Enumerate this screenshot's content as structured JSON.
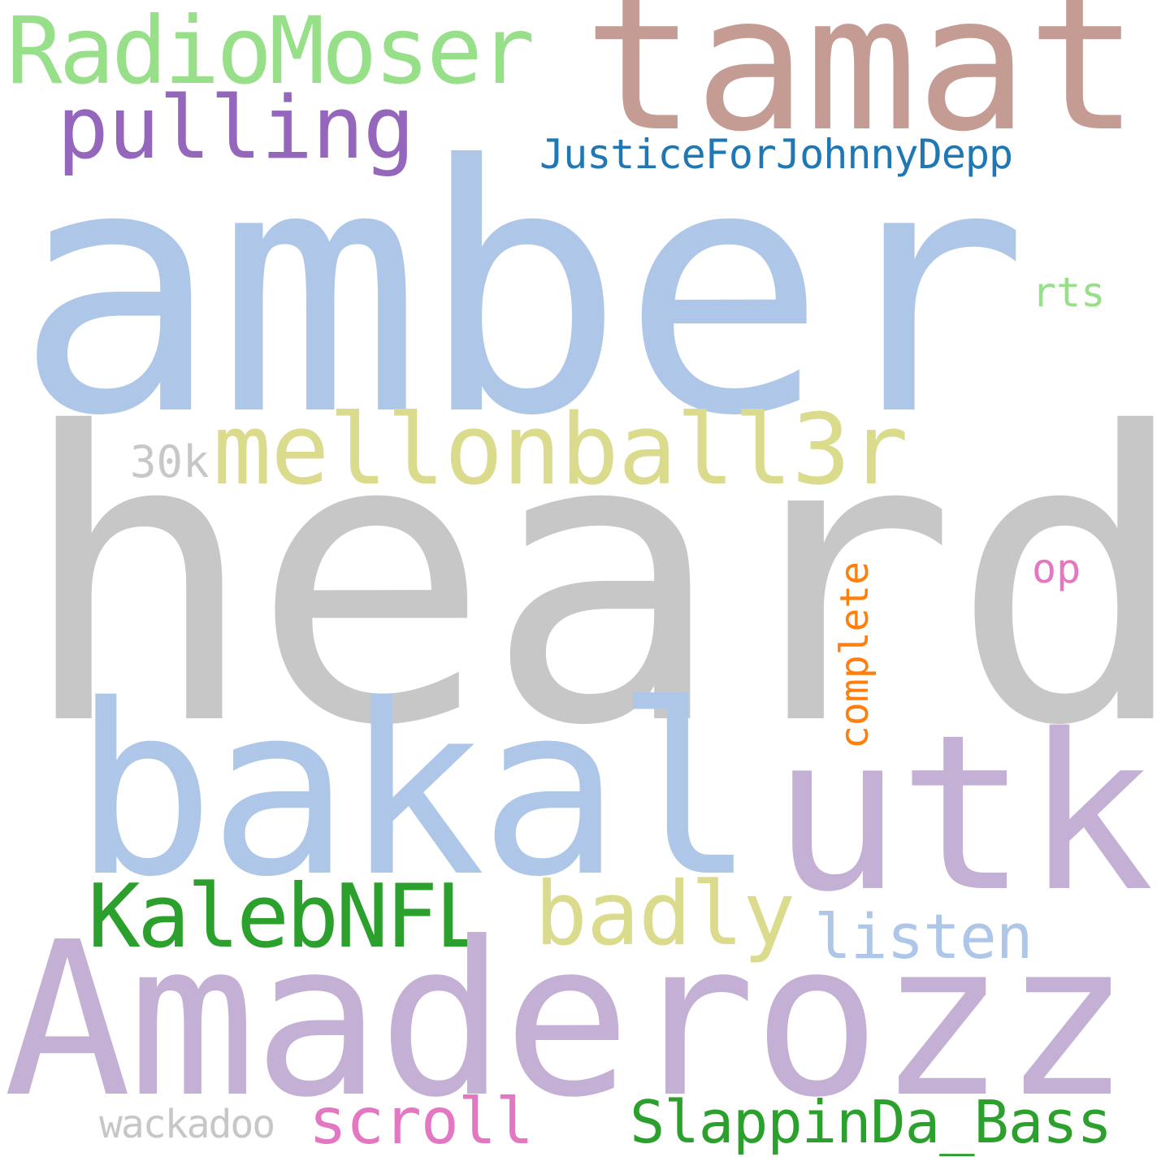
{
  "words": [
    {
      "text": "heard",
      "color": "#c7c7c7"
    },
    {
      "text": "amber",
      "color": "#aec7e8"
    },
    {
      "text": "tamat",
      "color": "#c49c94"
    },
    {
      "text": "RadioMoser",
      "color": "#98df8a"
    },
    {
      "text": "pulling",
      "color": "#9467bd"
    },
    {
      "text": "JusticeForJohnnyDepp",
      "color": "#1f77b4"
    },
    {
      "text": "rts",
      "color": "#98df8a"
    },
    {
      "text": "mellonball3r",
      "color": "#dbdb8d"
    },
    {
      "text": "30k",
      "color": "#c7c7c7"
    },
    {
      "text": "op",
      "color": "#e377c2"
    },
    {
      "text": "complete",
      "color": "#ff7f0e"
    },
    {
      "text": "bakal",
      "color": "#aec7e8"
    },
    {
      "text": "utk",
      "color": "#c5b0d5"
    },
    {
      "text": "KalebNFL",
      "color": "#2ca02c"
    },
    {
      "text": "badly",
      "color": "#dbdb8d"
    },
    {
      "text": "listen",
      "color": "#aec7e8"
    },
    {
      "text": "Amaderozz",
      "color": "#c5b0d5"
    },
    {
      "text": "wackadoo",
      "color": "#c7c7c7"
    },
    {
      "text": "scroll",
      "color": "#e377c2"
    },
    {
      "text": "SlappinDa_Bass",
      "color": "#2ca02c"
    }
  ]
}
